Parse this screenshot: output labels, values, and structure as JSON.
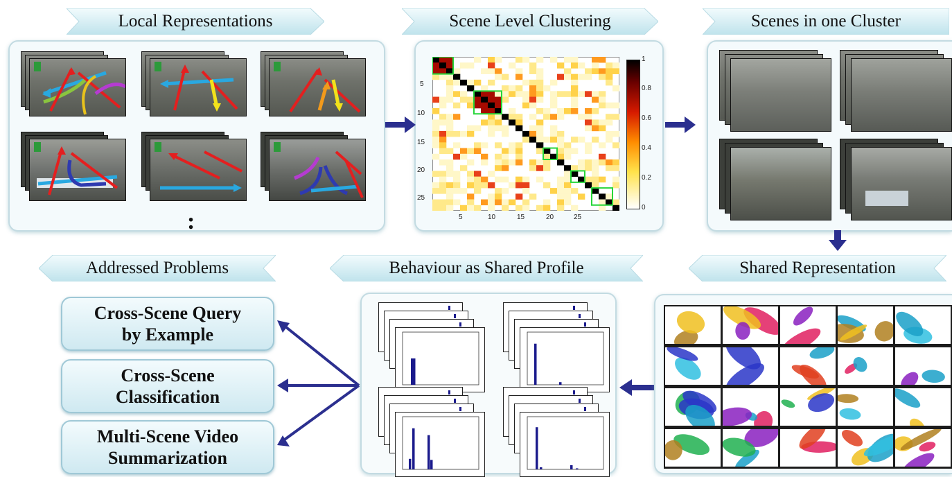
{
  "banners": {
    "local": "Local Representations",
    "clustering": "Scene Level Clustering",
    "cluster": "Scenes in one Cluster",
    "addressed": "Addressed Problems",
    "behaviour": "Behaviour as Shared Profile",
    "shared": "Shared Representation"
  },
  "problems": [
    {
      "line1": "Cross-Scene Query",
      "line2": "by Example"
    },
    {
      "line1": "Cross-Scene",
      "line2": "Classification"
    },
    {
      "line1": "Multi-Scene Video",
      "line2": "Summarization"
    }
  ],
  "ellipsis": ":",
  "matrix": {
    "y_ticks": [
      "5",
      "10",
      "15",
      "20",
      "25"
    ],
    "x_ticks": [
      "5",
      "10",
      "15",
      "20",
      "25"
    ],
    "colorbar_ticks": [
      "1",
      "0.8",
      "0.6",
      "0.4",
      "0.2",
      "0"
    ]
  },
  "colors": {
    "banner_fill": "#dff2f6",
    "panel_border": "#c3dbe2",
    "arrow": "#2b2f8f",
    "bar": "#1a1a8c"
  }
}
